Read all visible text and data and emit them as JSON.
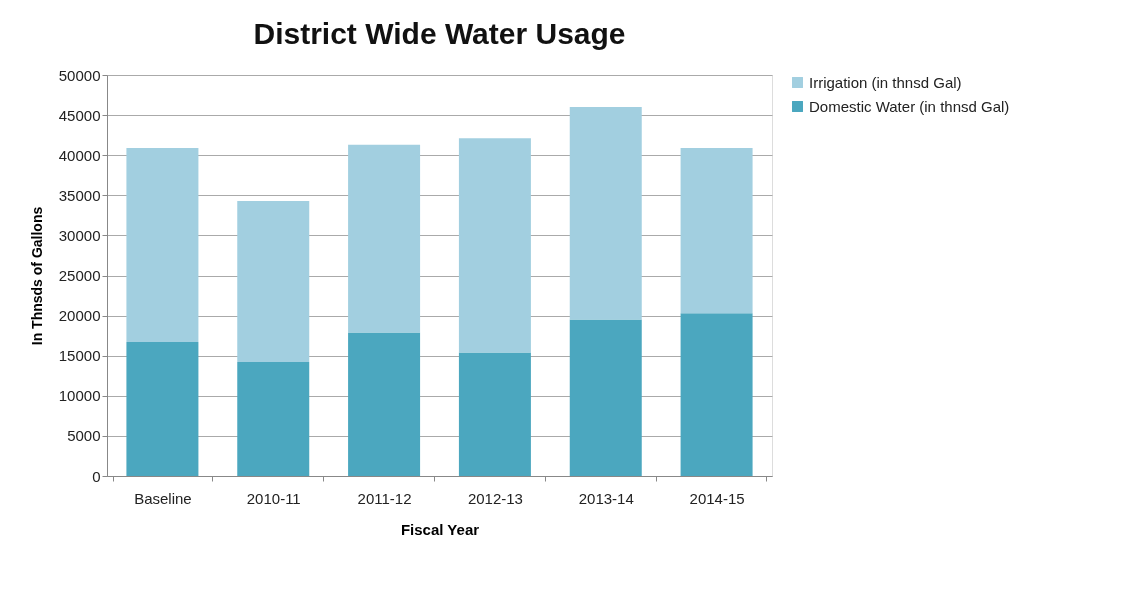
{
  "chart_data": {
    "type": "bar",
    "title": "District Wide Water Usage",
    "xlabel": "Fiscal Year",
    "ylabel": "In Thnsds of Gallons",
    "categories": [
      "Baseline",
      "2010-11",
      "2011-12",
      "2012-13",
      "2013-14",
      "2014-15"
    ],
    "stacked": true,
    "series": [
      {
        "name": "Domestic Water (in thnsd Gal)",
        "color": "#4ba7bf",
        "values": [
          16700,
          14200,
          17900,
          15400,
          19500,
          20300
        ]
      },
      {
        "name": "Irrigation (in thnsd Gal)",
        "color": "#a2cfe0",
        "values": [
          24200,
          20100,
          23400,
          26700,
          26500,
          20600
        ]
      }
    ],
    "ylim": [
      0,
      50000
    ],
    "yticks": [
      0,
      5000,
      10000,
      15000,
      20000,
      25000,
      30000,
      35000,
      40000,
      45000,
      50000
    ],
    "grid": "y",
    "legend": "right"
  }
}
